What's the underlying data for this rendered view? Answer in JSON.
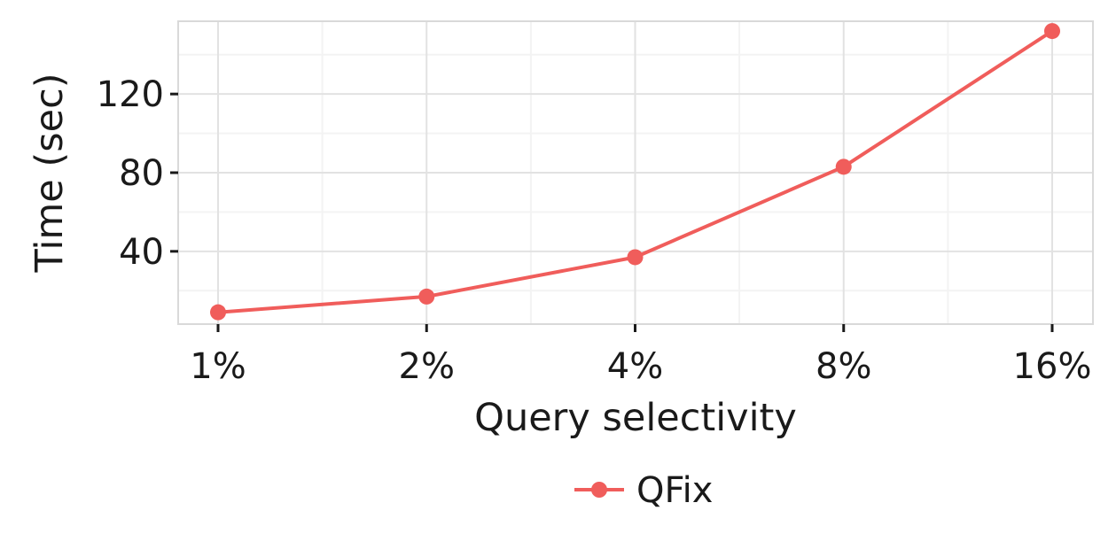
{
  "chart_data": {
    "type": "line",
    "xlabel": "Query selectivity",
    "ylabel": "Time (sec)",
    "categories": [
      "1%",
      "2%",
      "4%",
      "8%",
      "16%"
    ],
    "yticks": [
      40,
      80,
      120
    ],
    "ylim": [
      3,
      157
    ],
    "grid": true,
    "legend_position": "bottom",
    "series": [
      {
        "name": "QFix",
        "color": "#F05D5B",
        "values": [
          9,
          17,
          37,
          83,
          152
        ]
      }
    ]
  }
}
